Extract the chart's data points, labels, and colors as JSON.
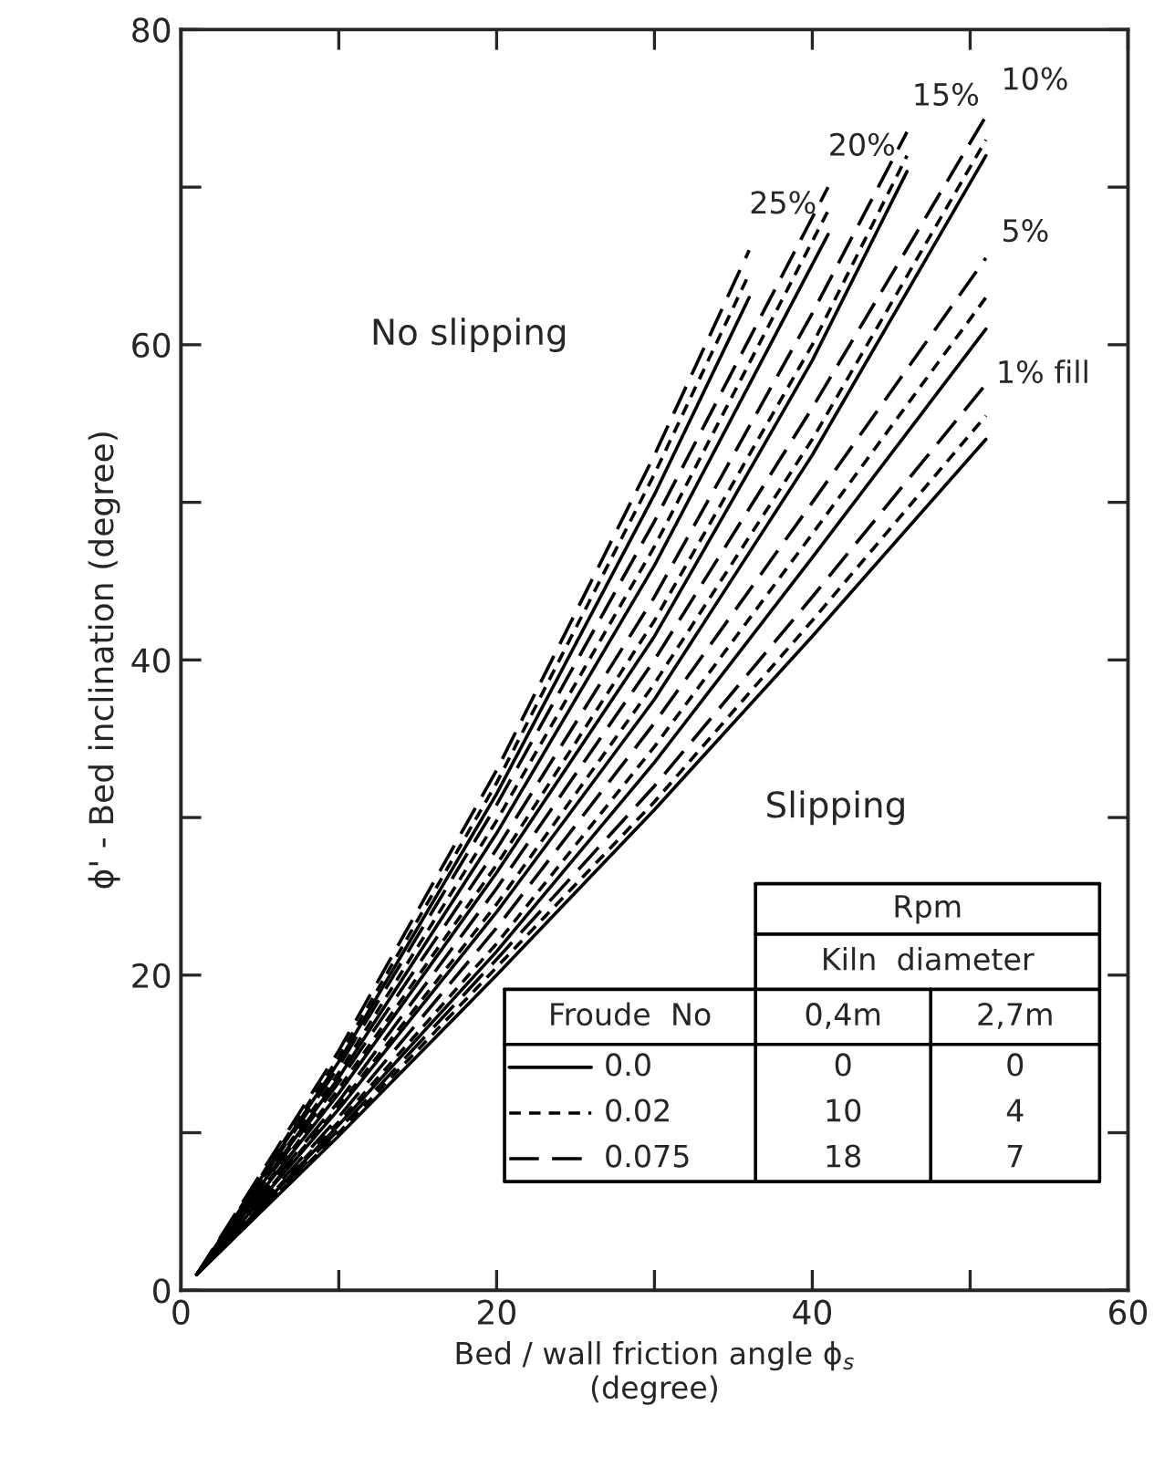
{
  "chart_data": {
    "type": "line",
    "xlabel": "Bed / wall friction angle ϕ$_{s}$\n(degree)",
    "ylabel": "ϕ' - Bed inclination (degree)",
    "xlim": [
      0,
      60
    ],
    "ylim": [
      0,
      80
    ],
    "xticks": [
      0,
      {
        "value": 10,
        "label": null
      },
      20,
      {
        "value": 30,
        "label": null
      },
      40,
      {
        "value": 50,
        "label": null
      },
      60
    ],
    "yticks": [
      0,
      {
        "value": 10,
        "label": null
      },
      20,
      {
        "value": 30,
        "label": null
      },
      40,
      {
        "value": 50,
        "label": null
      },
      60,
      {
        "value": 70,
        "label": null
      },
      80
    ],
    "grid": false,
    "marker": "none",
    "series": [
      {
        "color": "#000000",
        "line_style": "solid",
        "x": [
          1,
          10,
          20,
          30,
          40,
          51
        ],
        "values": [
          1,
          9.8,
          20,
          30.5,
          41.5,
          54
        ]
      },
      {
        "color": "#000000",
        "line_style": "dotted",
        "x": [
          1,
          10,
          20,
          30,
          40,
          51
        ],
        "values": [
          1,
          10,
          20.5,
          31,
          42.5,
          55.5
        ]
      },
      {
        "color": "#000000",
        "line_style": "dashed",
        "x": [
          1,
          10,
          20,
          30,
          40,
          51
        ],
        "values": [
          1,
          10.2,
          21,
          32,
          44,
          57.5
        ]
      },
      {
        "color": "#000000",
        "line_style": "solid",
        "x": [
          1,
          10,
          20,
          30,
          40,
          51
        ],
        "values": [
          1,
          10.5,
          21.5,
          33.5,
          46.5,
          61
        ]
      },
      {
        "color": "#000000",
        "line_style": "dotted",
        "x": [
          1,
          10,
          20,
          30,
          40,
          51
        ],
        "values": [
          1,
          10.7,
          22,
          34.5,
          48,
          63
        ]
      },
      {
        "color": "#000000",
        "line_style": "dashed",
        "x": [
          1,
          10,
          20,
          30,
          40,
          51
        ],
        "values": [
          1,
          11,
          23,
          36,
          50,
          65.5
        ]
      },
      {
        "color": "#000000",
        "line_style": "solid",
        "x": [
          1,
          10,
          20,
          30,
          40,
          51
        ],
        "values": [
          1,
          11.5,
          24,
          37.5,
          53,
          72
        ]
      },
      {
        "color": "#000000",
        "line_style": "dotted",
        "x": [
          1,
          10,
          20,
          30,
          40,
          51
        ],
        "values": [
          1,
          11.7,
          24.5,
          38.5,
          54,
          73
        ]
      },
      {
        "color": "#000000",
        "line_style": "dashed",
        "x": [
          1,
          10,
          20,
          30,
          40,
          51
        ],
        "values": [
          1,
          12,
          25.5,
          40,
          56,
          74.5
        ]
      },
      {
        "color": "#000000",
        "line_style": "solid",
        "x": [
          1,
          10,
          20,
          30,
          40,
          46
        ],
        "values": [
          1,
          12.5,
          26.5,
          41.5,
          59,
          71
        ]
      },
      {
        "color": "#000000",
        "line_style": "dotted",
        "x": [
          1,
          10,
          20,
          30,
          40,
          46
        ],
        "values": [
          1,
          12.8,
          27,
          42.5,
          60,
          72
        ]
      },
      {
        "color": "#000000",
        "line_style": "dashed",
        "x": [
          1,
          10,
          20,
          30,
          40,
          46
        ],
        "values": [
          1,
          13.2,
          28,
          44,
          62,
          73.5
        ]
      },
      {
        "color": "#000000",
        "line_style": "solid",
        "x": [
          1,
          10,
          20,
          30,
          41
        ],
        "values": [
          1,
          13.5,
          29,
          46,
          67
        ]
      },
      {
        "color": "#000000",
        "line_style": "dotted",
        "x": [
          1,
          10,
          20,
          30,
          41
        ],
        "values": [
          1,
          13.8,
          29.8,
          47.2,
          68.5
        ]
      },
      {
        "color": "#000000",
        "line_style": "dashed",
        "x": [
          1,
          10,
          20,
          30,
          41
        ],
        "values": [
          1,
          14.2,
          30.8,
          48.8,
          70
        ]
      },
      {
        "color": "#000000",
        "line_style": "solid",
        "x": [
          1,
          10,
          20,
          30,
          36
        ],
        "values": [
          1,
          14.5,
          31.5,
          50.5,
          63
        ]
      },
      {
        "color": "#000000",
        "line_style": "dotted",
        "x": [
          1,
          10,
          20,
          30,
          36
        ],
        "values": [
          1,
          14.8,
          32.2,
          51.8,
          64.5
        ]
      },
      {
        "color": "#000000",
        "line_style": "dashed",
        "x": [
          1,
          10,
          20,
          30,
          36
        ],
        "values": [
          1,
          15.2,
          33,
          53,
          66
        ]
      }
    ],
    "annotations": [
      {
        "text": "1% fill",
        "x": 51,
        "y": 57.5
      },
      {
        "text": "5%",
        "x": 51,
        "y": 65.5
      },
      {
        "text": "10%",
        "x": 51,
        "y": 74.5
      },
      {
        "text": "15%",
        "x": 46,
        "y": 73.5
      },
      {
        "text": "20%",
        "x": 41,
        "y": 70
      },
      {
        "text": "25%",
        "x": 36,
        "y": 66
      },
      "No slipping",
      "Slipping",
      "Rpm",
      "Kiln  diameter",
      "Froude  No",
      "0,4m",
      "2,7m",
      "0.0",
      "0",
      "0",
      "0.02",
      "10",
      "4",
      "0.075",
      "18",
      "7"
    ]
  }
}
